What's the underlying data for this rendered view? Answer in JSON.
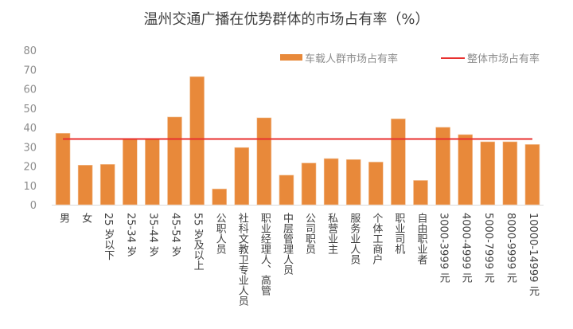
{
  "chart_data": {
    "type": "bar",
    "title": "温州交通广播在优势群体的市场占有率（%）",
    "xlabel": "",
    "ylabel": "",
    "ylim": [
      0,
      80
    ],
    "yticks": [
      0,
      10,
      20,
      30,
      40,
      50,
      60,
      70,
      80
    ],
    "grid": false,
    "legend_position": "top-right",
    "categories": [
      "男",
      "女",
      "25 岁以下",
      "25-34 岁",
      "35-44 岁",
      "45-54 岁",
      "55 岁及以上",
      "公职人员",
      "社科文教卫专业人员",
      "职业经理人、高管",
      "中层管理人员",
      "公司职员",
      "私营业主",
      "服务业人员",
      "个体工商户",
      "职业司机",
      "自由职业者",
      "3000-3999 元",
      "4000-4999 元",
      "5000-7999 元",
      "8000-9999 元",
      "10000-14999 元"
    ],
    "series": [
      {
        "name": "车载人群市场占有率",
        "type": "bar",
        "color": "#e8893a",
        "values": [
          37.0,
          20.5,
          20.9,
          34.0,
          34.0,
          45.4,
          66.3,
          8.2,
          29.6,
          45.0,
          15.3,
          21.6,
          23.9,
          23.4,
          22.1,
          44.5,
          12.6,
          40.1,
          36.3,
          32.6,
          32.6,
          31.2
        ]
      },
      {
        "name": "整体市场占有率",
        "type": "line",
        "color": "#e8302f",
        "values": [
          34.0,
          34.0,
          34.0,
          34.0,
          34.0,
          34.0,
          34.0,
          34.0,
          34.0,
          34.0,
          34.0,
          34.0,
          34.0,
          34.0,
          34.0,
          34.0,
          34.0,
          34.0,
          34.0,
          34.0,
          34.0,
          34.0
        ]
      }
    ]
  }
}
